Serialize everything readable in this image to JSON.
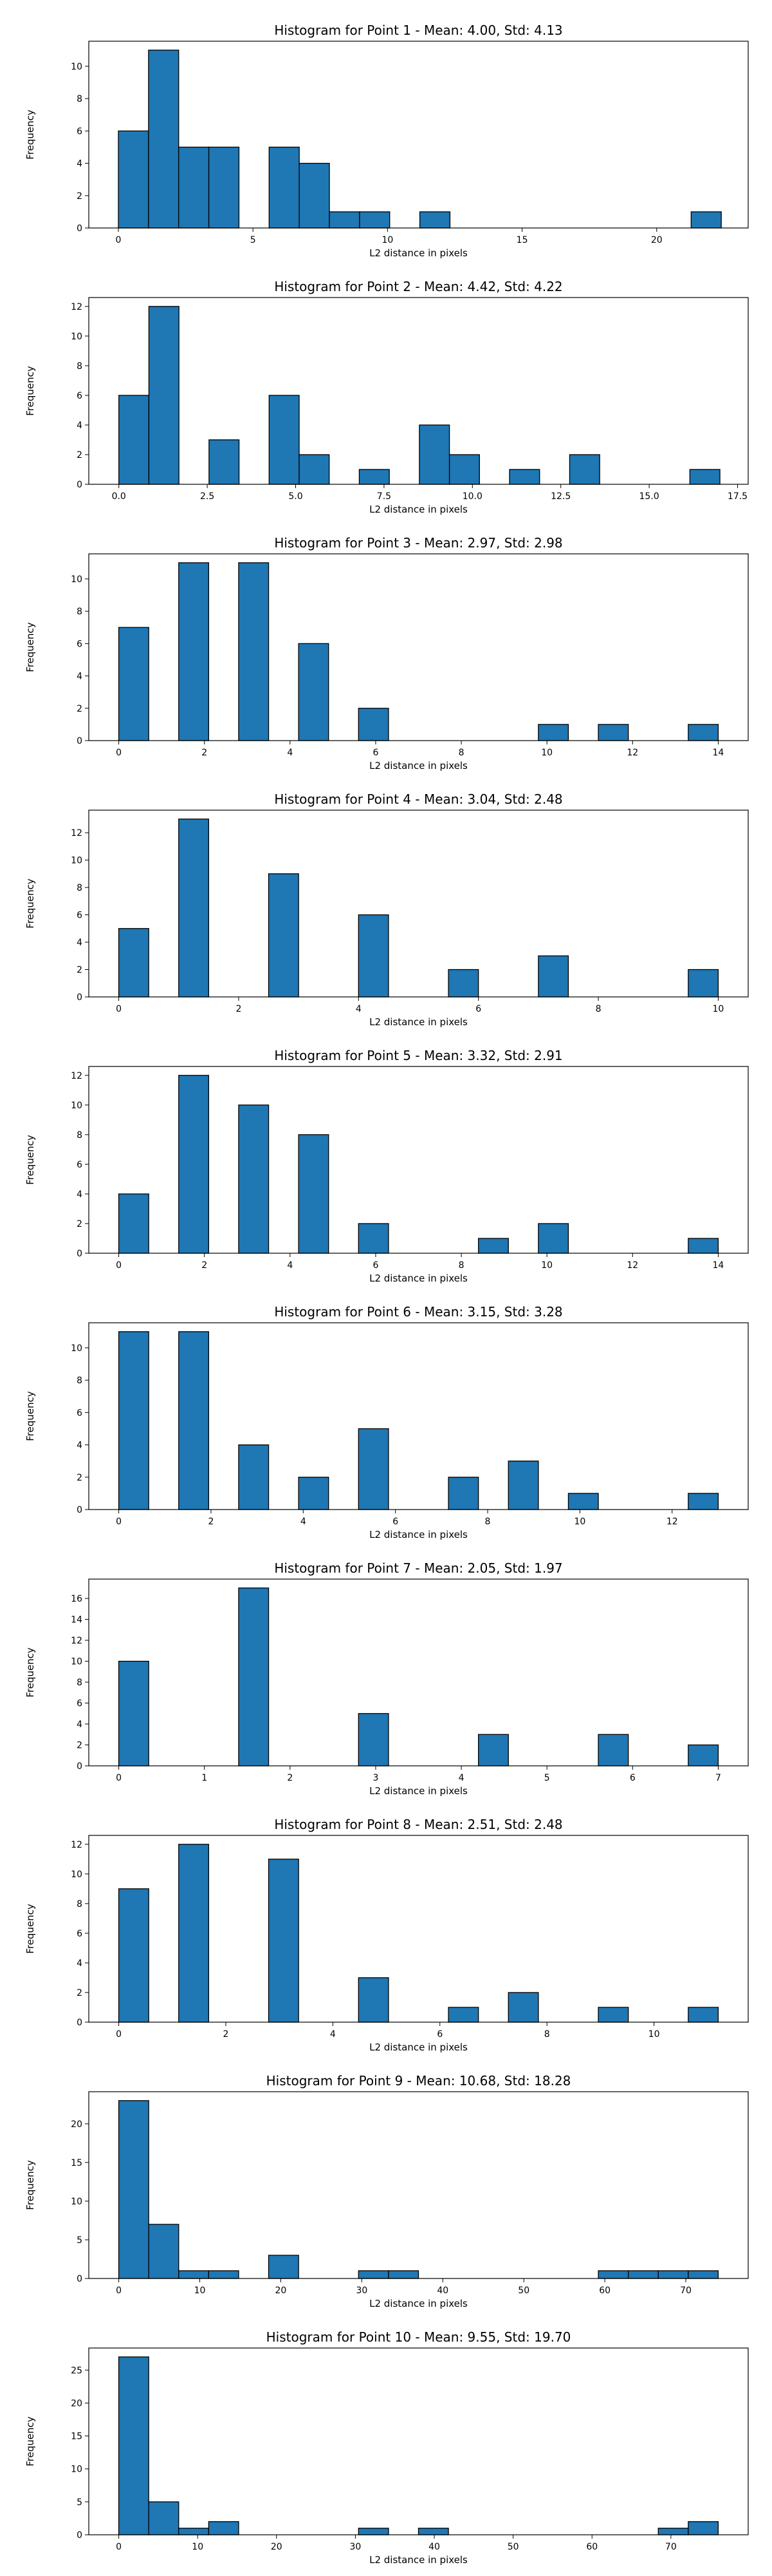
{
  "chart_data": [
    {
      "type": "bar",
      "title": "Histogram for Point 1 - Mean: 4.00, Std: 4.13",
      "xlabel": "L2 distance in pixels",
      "ylabel": "Frequency",
      "xlim": [
        -1.1,
        23.4
      ],
      "ylim": [
        0,
        11.55
      ],
      "xticks": [
        0,
        5,
        10,
        15,
        20
      ],
      "xtick_labels": [
        "0",
        "5",
        "10",
        "15",
        "20"
      ],
      "yticks": [
        0,
        2,
        4,
        6,
        8,
        10
      ],
      "ytick_labels": [
        "0",
        "2",
        "4",
        "6",
        "8",
        "10"
      ],
      "bin_start": 0,
      "bin_width": 1.12,
      "counts": [
        6,
        11,
        5,
        5,
        0,
        5,
        4,
        1,
        1,
        0,
        1,
        0,
        0,
        0,
        0,
        0,
        0,
        0,
        0,
        1
      ],
      "bar_color": "#1f77b4",
      "edge_color": "#000000"
    },
    {
      "type": "bar",
      "title": "Histogram for Point 2 - Mean: 4.42, Std: 4.22",
      "xlabel": "L2 distance in pixels",
      "ylabel": "Frequency",
      "xlim": [
        -0.85,
        17.8
      ],
      "ylim": [
        0,
        12.6
      ],
      "xticks": [
        0,
        2.5,
        5,
        7.5,
        10,
        12.5,
        15,
        17.5
      ],
      "xtick_labels": [
        "0.0",
        "2.5",
        "5.0",
        "7.5",
        "10.0",
        "12.5",
        "15.0",
        "17.5"
      ],
      "yticks": [
        0,
        2,
        4,
        6,
        8,
        10,
        12
      ],
      "ytick_labels": [
        "0",
        "2",
        "4",
        "6",
        "8",
        "10",
        "12"
      ],
      "bin_start": 0,
      "bin_width": 0.85,
      "counts": [
        6,
        12,
        0,
        3,
        0,
        6,
        2,
        0,
        1,
        0,
        4,
        2,
        0,
        1,
        0,
        2,
        0,
        0,
        0,
        1
      ],
      "bar_color": "#1f77b4",
      "edge_color": "#000000"
    },
    {
      "type": "bar",
      "title": "Histogram for Point 3 - Mean: 2.97, Std: 2.98",
      "xlabel": "L2 distance in pixels",
      "ylabel": "Frequency",
      "xlim": [
        -0.7,
        14.7
      ],
      "ylim": [
        0,
        11.55
      ],
      "xticks": [
        0,
        2,
        4,
        6,
        8,
        10,
        12,
        14
      ],
      "xtick_labels": [
        "0",
        "2",
        "4",
        "6",
        "8",
        "10",
        "12",
        "14"
      ],
      "yticks": [
        0,
        2,
        4,
        6,
        8,
        10
      ],
      "ytick_labels": [
        "0",
        "2",
        "4",
        "6",
        "8",
        "10"
      ],
      "bin_start": 0,
      "bin_width": 0.7,
      "counts": [
        7,
        0,
        11,
        0,
        11,
        0,
        6,
        0,
        2,
        0,
        0,
        0,
        0,
        0,
        1,
        0,
        1,
        0,
        0,
        1
      ],
      "bar_color": "#1f77b4",
      "edge_color": "#000000"
    },
    {
      "type": "bar",
      "title": "Histogram for Point 4 - Mean: 3.04, Std: 2.48",
      "xlabel": "L2 distance in pixels",
      "ylabel": "Frequency",
      "xlim": [
        -0.5,
        10.5
      ],
      "ylim": [
        0,
        13.65
      ],
      "xticks": [
        0,
        2,
        4,
        6,
        8,
        10
      ],
      "xtick_labels": [
        "0",
        "2",
        "4",
        "6",
        "8",
        "10"
      ],
      "yticks": [
        0,
        2,
        4,
        6,
        8,
        10,
        12
      ],
      "ytick_labels": [
        "0",
        "2",
        "4",
        "6",
        "8",
        "10",
        "12"
      ],
      "bin_start": 0,
      "bin_width": 0.5,
      "counts": [
        5,
        0,
        13,
        0,
        0,
        9,
        0,
        0,
        6,
        0,
        0,
        2,
        0,
        0,
        3,
        0,
        0,
        0,
        0,
        2
      ],
      "bar_color": "#1f77b4",
      "edge_color": "#000000"
    },
    {
      "type": "bar",
      "title": "Histogram for Point 5 - Mean: 3.32, Std: 2.91",
      "xlabel": "L2 distance in pixels",
      "ylabel": "Frequency",
      "xlim": [
        -0.7,
        14.7
      ],
      "ylim": [
        0,
        12.6
      ],
      "xticks": [
        0,
        2,
        4,
        6,
        8,
        10,
        12,
        14
      ],
      "xtick_labels": [
        "0",
        "2",
        "4",
        "6",
        "8",
        "10",
        "12",
        "14"
      ],
      "yticks": [
        0,
        2,
        4,
        6,
        8,
        10,
        12
      ],
      "ytick_labels": [
        "0",
        "2",
        "4",
        "6",
        "8",
        "10",
        "12"
      ],
      "bin_start": 0,
      "bin_width": 0.7,
      "counts": [
        4,
        0,
        12,
        0,
        10,
        0,
        8,
        0,
        2,
        0,
        0,
        0,
        1,
        0,
        2,
        0,
        0,
        0,
        0,
        1
      ],
      "bar_color": "#1f77b4",
      "edge_color": "#000000"
    },
    {
      "type": "bar",
      "title": "Histogram for Point 6 - Mean: 3.15, Std: 3.28",
      "xlabel": "L2 distance in pixels",
      "ylabel": "Frequency",
      "xlim": [
        -0.65,
        13.65
      ],
      "ylim": [
        0,
        11.55
      ],
      "xticks": [
        0,
        2,
        4,
        6,
        8,
        10,
        12
      ],
      "xtick_labels": [
        "0",
        "2",
        "4",
        "6",
        "8",
        "10",
        "12"
      ],
      "yticks": [
        0,
        2,
        4,
        6,
        8,
        10
      ],
      "ytick_labels": [
        "0",
        "2",
        "4",
        "6",
        "8",
        "10"
      ],
      "bin_start": 0,
      "bin_width": 0.65,
      "counts": [
        11,
        0,
        11,
        0,
        4,
        0,
        2,
        0,
        5,
        0,
        0,
        2,
        0,
        3,
        0,
        1,
        0,
        0,
        0,
        1
      ],
      "bar_color": "#1f77b4",
      "edge_color": "#000000"
    },
    {
      "type": "bar",
      "title": "Histogram for Point 7 - Mean: 2.05, Std: 1.97",
      "xlabel": "L2 distance in pixels",
      "ylabel": "Frequency",
      "xlim": [
        -0.35,
        7.35
      ],
      "ylim": [
        0,
        17.85
      ],
      "xticks": [
        0,
        1,
        2,
        3,
        4,
        5,
        6,
        7
      ],
      "xtick_labels": [
        "0",
        "1",
        "2",
        "3",
        "4",
        "5",
        "6",
        "7"
      ],
      "yticks": [
        0,
        2,
        4,
        6,
        8,
        10,
        12,
        14,
        16
      ],
      "ytick_labels": [
        "0",
        "2",
        "4",
        "6",
        "8",
        "10",
        "12",
        "14",
        "16"
      ],
      "bin_start": 0,
      "bin_width": 0.35,
      "counts": [
        10,
        0,
        0,
        0,
        17,
        0,
        0,
        0,
        5,
        0,
        0,
        0,
        3,
        0,
        0,
        0,
        3,
        0,
        0,
        2
      ],
      "bar_color": "#1f77b4",
      "edge_color": "#000000"
    },
    {
      "type": "bar",
      "title": "Histogram for Point 8 - Mean: 2.51, Std: 2.48",
      "xlabel": "L2 distance in pixels",
      "ylabel": "Frequency",
      "xlim": [
        -0.56,
        11.76
      ],
      "ylim": [
        0,
        12.6
      ],
      "xticks": [
        0,
        2,
        4,
        6,
        8,
        10
      ],
      "xtick_labels": [
        "0",
        "2",
        "4",
        "6",
        "8",
        "10"
      ],
      "yticks": [
        0,
        2,
        4,
        6,
        8,
        10,
        12
      ],
      "ytick_labels": [
        "0",
        "2",
        "4",
        "6",
        "8",
        "10",
        "12"
      ],
      "bin_start": 0,
      "bin_width": 0.56,
      "counts": [
        9,
        0,
        12,
        0,
        0,
        11,
        0,
        0,
        3,
        0,
        0,
        1,
        0,
        2,
        0,
        0,
        1,
        0,
        0,
        1
      ],
      "bar_color": "#1f77b4",
      "edge_color": "#000000"
    },
    {
      "type": "bar",
      "title": "Histogram for Point 9 - Mean: 10.68, Std: 18.28",
      "xlabel": "L2 distance in pixels",
      "ylabel": "Frequency",
      "xlim": [
        -3.7,
        77.7
      ],
      "ylim": [
        0,
        24.15
      ],
      "xticks": [
        0,
        10,
        20,
        30,
        40,
        50,
        60,
        70
      ],
      "xtick_labels": [
        "0",
        "10",
        "20",
        "30",
        "40",
        "50",
        "60",
        "70"
      ],
      "yticks": [
        0,
        5,
        10,
        15,
        20
      ],
      "ytick_labels": [
        "0",
        "5",
        "10",
        "15",
        "20"
      ],
      "bin_start": 0,
      "bin_width": 3.7,
      "counts": [
        23,
        7,
        1,
        1,
        0,
        3,
        0,
        0,
        1,
        1,
        0,
        0,
        0,
        0,
        0,
        0,
        1,
        1,
        1,
        1
      ],
      "bar_color": "#1f77b4",
      "edge_color": "#000000"
    },
    {
      "type": "bar",
      "title": "Histogram for Point 10 - Mean: 9.55, Std: 19.70",
      "xlabel": "L2 distance in pixels",
      "ylabel": "Frequency",
      "xlim": [
        -3.8,
        79.8
      ],
      "ylim": [
        0,
        28.35
      ],
      "xticks": [
        0,
        10,
        20,
        30,
        40,
        50,
        60,
        70
      ],
      "xtick_labels": [
        "0",
        "10",
        "20",
        "30",
        "40",
        "50",
        "60",
        "70"
      ],
      "yticks": [
        0,
        5,
        10,
        15,
        20,
        25
      ],
      "ytick_labels": [
        "0",
        "5",
        "10",
        "15",
        "20",
        "25"
      ],
      "bin_start": 0,
      "bin_width": 3.8,
      "counts": [
        27,
        5,
        1,
        2,
        0,
        0,
        0,
        0,
        1,
        0,
        1,
        0,
        0,
        0,
        0,
        0,
        0,
        0,
        1,
        2
      ],
      "bar_color": "#1f77b4",
      "edge_color": "#000000"
    }
  ]
}
